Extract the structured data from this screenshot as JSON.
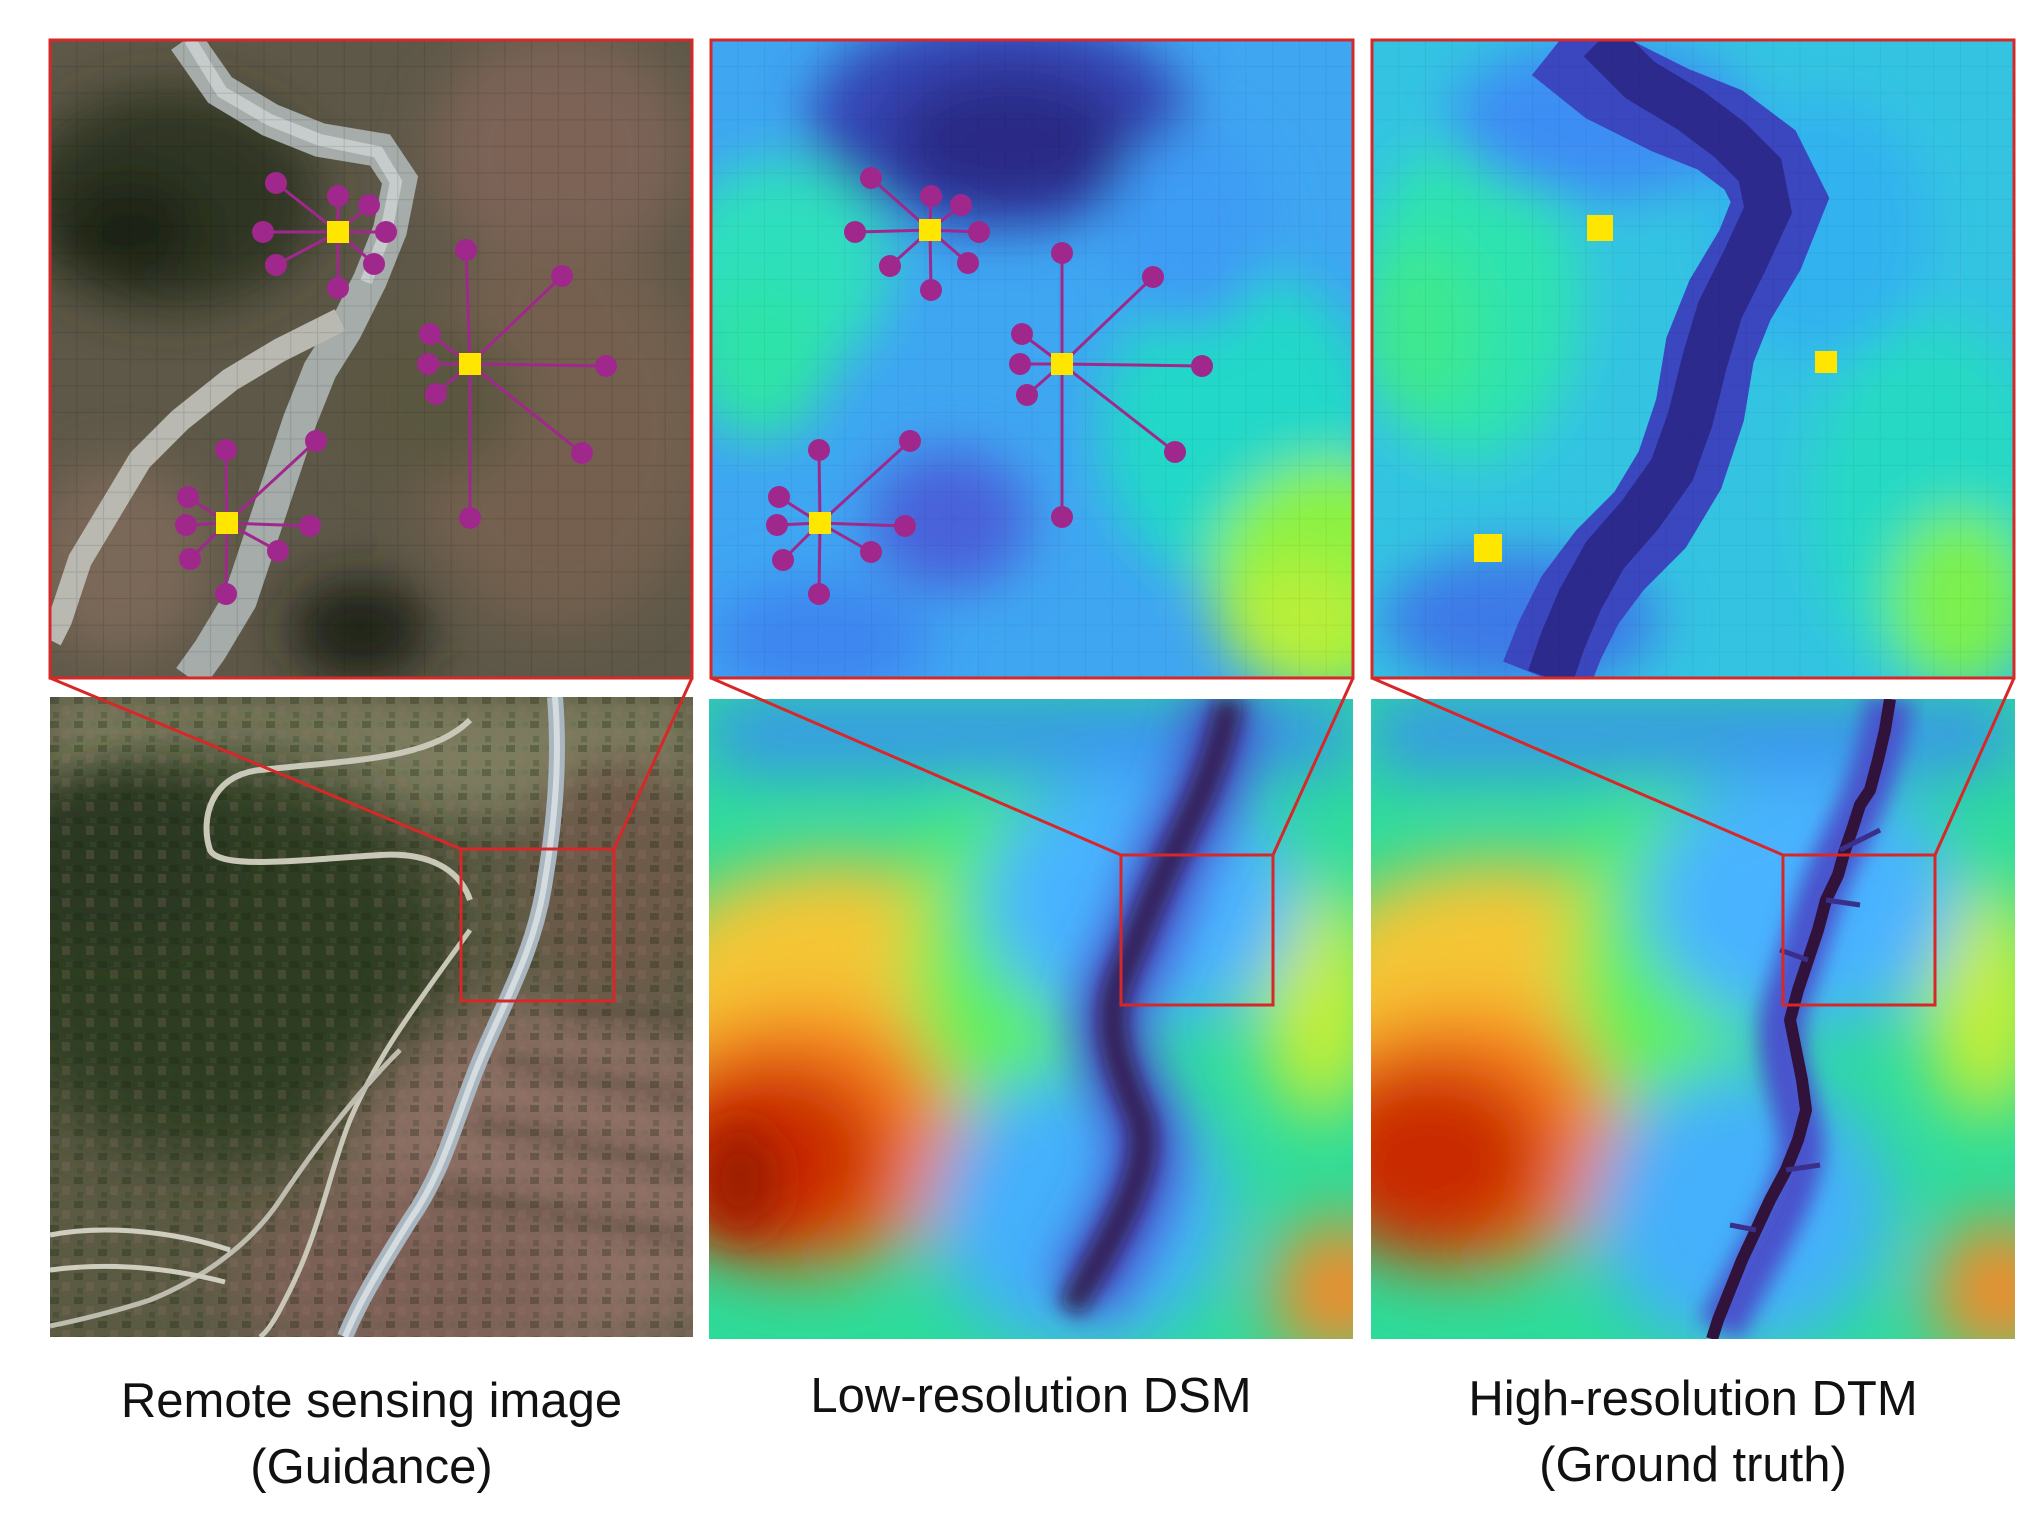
{
  "panels": [
    {
      "caption_line1": "Remote sensing image",
      "caption_line2": "(Guidance)",
      "kind": "rgb"
    },
    {
      "caption_line1": "Low-resolution DSM",
      "caption_line2": "",
      "kind": "dsm"
    },
    {
      "caption_line1": "High-resolution DTM",
      "caption_line2": "(Ground truth)",
      "kind": "dtm"
    }
  ],
  "colors": {
    "frame_red": "#d62828",
    "node_yellow": "#ffe600",
    "neighbor_purple": "#a0288c",
    "elevation_low": "#30123b",
    "elevation_mid": "#1ae4b6",
    "elevation_high": "#7a0403"
  }
}
